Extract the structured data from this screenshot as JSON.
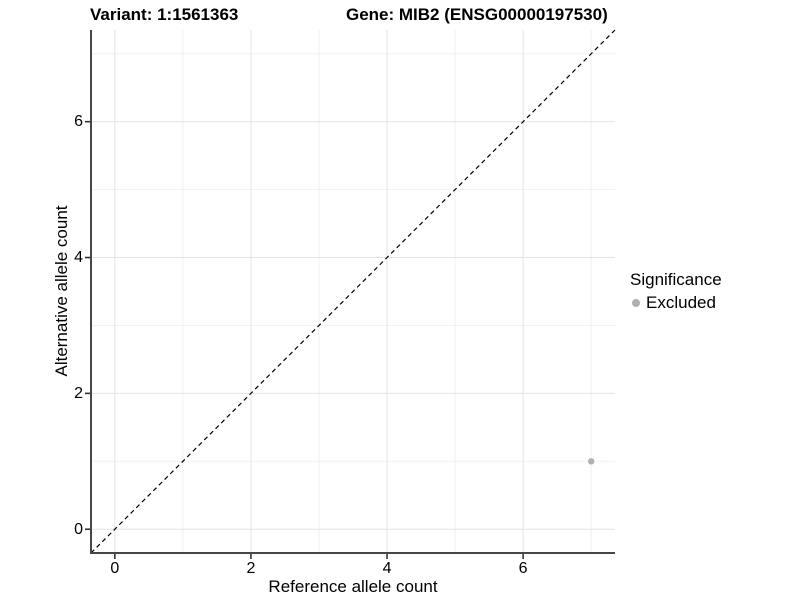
{
  "titles": {
    "variant": "Variant: 1:1561363",
    "gene": "Gene: MIB2 (ENSG00000197530)"
  },
  "legend": {
    "title": "Significance",
    "items": [
      {
        "label": "Excluded",
        "color": "#b0b0b0"
      }
    ]
  },
  "chart_data": {
    "type": "scatter",
    "title": "Variant: 1:1561363    Gene: MIB2 (ENSG00000197530)",
    "xlabel": "Reference allele count",
    "ylabel": "Alternative allele count",
    "xlim": [
      -0.35,
      7.35
    ],
    "ylim": [
      -0.35,
      7.35
    ],
    "xticks": [
      0,
      2,
      4,
      6
    ],
    "yticks": [
      0,
      2,
      4,
      6
    ],
    "minor_xticks": [
      1,
      3,
      5,
      7
    ],
    "minor_yticks": [
      1,
      3,
      5,
      7
    ],
    "grid": true,
    "legend_position": "right",
    "legend_title": "Significance",
    "series": [
      {
        "name": "Excluded",
        "color": "#b0b0b0",
        "points": [
          {
            "x": 7,
            "y": 1
          }
        ]
      }
    ],
    "reference_line": {
      "type": "identity",
      "slope": 1,
      "intercept": 0,
      "style": "dashed",
      "color": "#000000"
    }
  },
  "colors": {
    "background": "#ffffff",
    "grid_major": "#e4e4e4",
    "grid_minor": "#f1f1f1",
    "axis_line": "#474747",
    "tick_mark": "#333333",
    "point": "#b0b0b0",
    "text": "#000000"
  }
}
